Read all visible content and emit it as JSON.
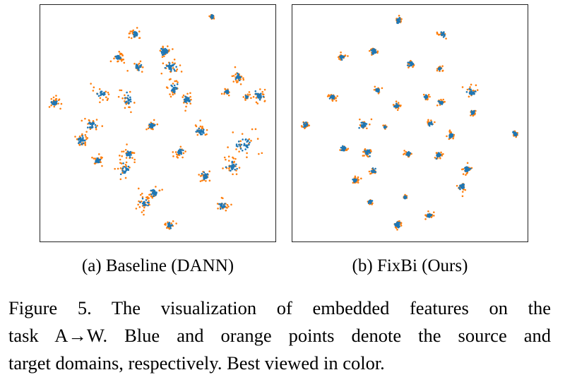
{
  "figure": {
    "panels": [
      {
        "id": "a",
        "caption": "(a) Baseline (DANN)",
        "clusters": [
          [
            301,
            23,
            3,
            1.3,
            0.2,
            0.5
          ],
          [
            191,
            47,
            4,
            2.2,
            0.4,
            0.9
          ],
          [
            233,
            72,
            5,
            3.0,
            1.3,
            0.8
          ],
          [
            168,
            81,
            4,
            2.5,
            0.5,
            1.0
          ],
          [
            195,
            95,
            4,
            2.2,
            0.5,
            0.9
          ],
          [
            242,
            95,
            5,
            3.5,
            0.8,
            1.1
          ],
          [
            338,
            109,
            5,
            2.5,
            0.6,
            0.7
          ],
          [
            246,
            125,
            4,
            3.0,
            0.6,
            1.0
          ],
          [
            144,
            133,
            3,
            4.0,
            0.6,
            1.0
          ],
          [
            265,
            140,
            5,
            3.0,
            0.7,
            0.7
          ],
          [
            368,
            135,
            6,
            3.0,
            0.7,
            0.8
          ],
          [
            322,
            130,
            2,
            1.5,
            0.3,
            0.7
          ],
          [
            181,
            142,
            3,
            3.5,
            0.5,
            1.0
          ],
          [
            350,
            137,
            2,
            1.3,
            0.4,
            0.5
          ],
          [
            76,
            145,
            6,
            2.4,
            0.6,
            0.8
          ],
          [
            215,
            178,
            5,
            2.5,
            0.7,
            0.8
          ],
          [
            285,
            186,
            5,
            3.0,
            0.7,
            0.8
          ],
          [
            130,
            178,
            4,
            3.0,
            0.6,
            1.0
          ],
          [
            113,
            198,
            5,
            3.5,
            0.5,
            1.0
          ],
          [
            345,
            205,
            6,
            6.0,
            0.7,
            1.0
          ],
          [
            182,
            218,
            4,
            3.0,
            0.6,
            1.0
          ],
          [
            255,
            215,
            5,
            2.5,
            0.7,
            0.8
          ],
          [
            138,
            228,
            4,
            2.0,
            0.7,
            0.8
          ],
          [
            329,
            236,
            5,
            3.5,
            0.7,
            0.9
          ],
          [
            176,
            240,
            3,
            4.0,
            0.4,
            1.0
          ],
          [
            292,
            250,
            5,
            2.5,
            0.7,
            0.8
          ],
          [
            218,
            274,
            4,
            2.5,
            0.7,
            0.8
          ],
          [
            205,
            288,
            6,
            3.5,
            0.4,
            1.0
          ],
          [
            315,
            292,
            4,
            2.5,
            0.5,
            0.9
          ],
          [
            240,
            320,
            3,
            2.0,
            0.6,
            0.8
          ]
        ]
      },
      {
        "id": "b",
        "caption": "(b) FixBi (Ours)",
        "clusters": [
          [
            564,
            28,
            4,
            1.8,
            0.7,
            0.5
          ],
          [
            627,
            47,
            4,
            2.0,
            0.7,
            0.5
          ],
          [
            483,
            80,
            4,
            2.0,
            0.7,
            0.5
          ],
          [
            529,
            72,
            4,
            1.8,
            0.7,
            0.5
          ],
          [
            582,
            90,
            4,
            2.0,
            0.7,
            0.5
          ],
          [
            623,
            97,
            3,
            1.4,
            0.6,
            0.5
          ],
          [
            667,
            130,
            4,
            3.0,
            0.8,
            0.5
          ],
          [
            534,
            127,
            3,
            1.6,
            0.7,
            0.5
          ],
          [
            470,
            137,
            4,
            1.8,
            0.7,
            0.5
          ],
          [
            604,
            137,
            3,
            1.5,
            0.7,
            0.5
          ],
          [
            625,
            145,
            3,
            1.5,
            0.7,
            0.5
          ],
          [
            562,
            150,
            4,
            1.8,
            0.7,
            0.5
          ],
          [
            670,
            160,
            3,
            2.0,
            0.6,
            0.5
          ],
          [
            432,
            177,
            4,
            1.8,
            0.5,
            0.6
          ],
          [
            515,
            177,
            4,
            2.5,
            0.7,
            0.5
          ],
          [
            545,
            180,
            2,
            1.0,
            0.5,
            0.5
          ],
          [
            609,
            175,
            3,
            1.6,
            0.7,
            0.5
          ],
          [
            639,
            192,
            4,
            1.8,
            0.7,
            0.5
          ],
          [
            730,
            190,
            4,
            1.8,
            0.5,
            0.5
          ],
          [
            486,
            211,
            3,
            1.6,
            0.7,
            0.5
          ],
          [
            520,
            216,
            4,
            2.5,
            0.7,
            0.5
          ],
          [
            578,
            218,
            4,
            1.8,
            0.7,
            0.5
          ],
          [
            621,
            220,
            4,
            1.8,
            0.7,
            0.5
          ],
          [
            662,
            240,
            4,
            2.2,
            0.5,
            0.6
          ],
          [
            528,
            243,
            4,
            1.8,
            0.7,
            0.5
          ],
          [
            502,
            256,
            4,
            1.8,
            0.6,
            0.5
          ],
          [
            574,
            280,
            2,
            1.0,
            0.7,
            0.5
          ],
          [
            654,
            265,
            4,
            2.5,
            0.7,
            0.5
          ],
          [
            524,
            286,
            3,
            1.4,
            0.7,
            0.5
          ],
          [
            608,
            306,
            4,
            1.8,
            0.7,
            0.5
          ],
          [
            563,
            319,
            5,
            2.2,
            0.7,
            0.5
          ]
        ]
      }
    ],
    "caption_lines": [
      "Figure 5.  The visualization of embedded features on the",
      "task A→W. Blue and orange points denote the source and",
      "target domains, respectively. Best viewed in color."
    ]
  },
  "colors": {
    "source_points": "#1f77b4",
    "target_points": "#ff7f0e",
    "frame": "#222222"
  }
}
